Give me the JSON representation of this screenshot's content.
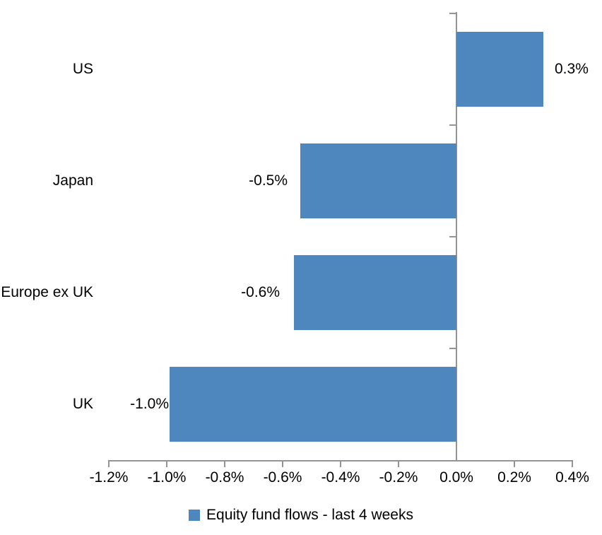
{
  "chart_data": {
    "type": "bar",
    "orientation": "horizontal",
    "title": "",
    "xlabel": "",
    "ylabel": "",
    "grid": false,
    "categories": [
      "US",
      "Japan",
      "Europe ex UK",
      "UK"
    ],
    "series": [
      {
        "name": "Equity fund flows - last 4 weeks",
        "values": [
          0.3,
          -0.54,
          -0.56,
          -0.99
        ],
        "data_labels": [
          "0.3%",
          "-0.5%",
          "-0.6%",
          "-1.0%"
        ]
      }
    ],
    "x_axis": {
      "min": -1.2,
      "max": 0.4,
      "tick_values": [
        -1.2,
        -1.0,
        -0.8,
        -0.6,
        -0.4,
        -0.2,
        0.0,
        0.2,
        0.4
      ],
      "tick_labels": [
        "-1.2%",
        "-1.0%",
        "-0.8%",
        "-0.6%",
        "-0.4%",
        "-0.2%",
        "0.0%",
        "0.2%",
        "0.4%"
      ]
    },
    "legend": {
      "position": "bottom",
      "entries": [
        {
          "label": "Equity fund flows - last 4 weeks",
          "color": "#4D87BE"
        }
      ]
    },
    "colors": {
      "bar": "#4D87BE",
      "axis_line": "#949494",
      "text": "#000000",
      "background": "#FFFFFF"
    }
  }
}
